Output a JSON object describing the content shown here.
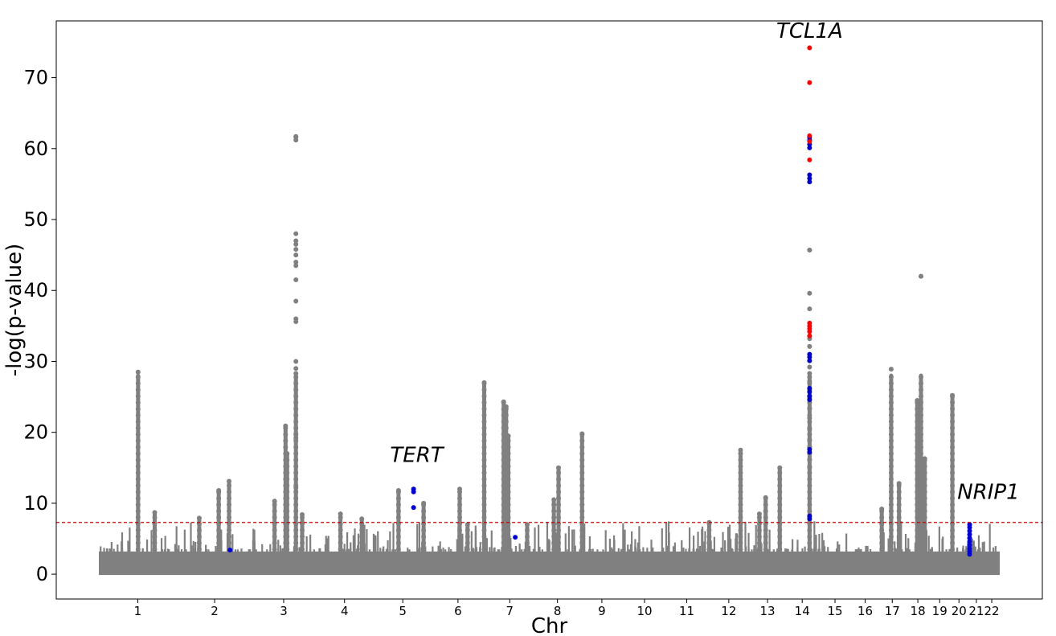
{
  "chart_data": {
    "type": "scatter",
    "title": "",
    "xlabel": "Chr",
    "ylabel": "-log(p-value)",
    "ylim": [
      -3.5,
      78
    ],
    "yticks": [
      0,
      10,
      20,
      30,
      40,
      50,
      60,
      70
    ],
    "chromosomes": [
      {
        "label": "1",
        "start": 0,
        "end": 248
      },
      {
        "label": "2",
        "start": 248,
        "end": 490
      },
      {
        "label": "3",
        "start": 490,
        "end": 688
      },
      {
        "label": "4",
        "start": 688,
        "end": 878
      },
      {
        "label": "5",
        "start": 878,
        "end": 1059
      },
      {
        "label": "6",
        "start": 1059,
        "end": 1230
      },
      {
        "label": "7",
        "start": 1230,
        "end": 1389
      },
      {
        "label": "8",
        "start": 1389,
        "end": 1534
      },
      {
        "label": "9",
        "start": 1534,
        "end": 1672
      },
      {
        "label": "10",
        "start": 1672,
        "end": 1806
      },
      {
        "label": "11",
        "start": 1806,
        "end": 1941
      },
      {
        "label": "12",
        "start": 1941,
        "end": 2074
      },
      {
        "label": "13",
        "start": 2074,
        "end": 2188
      },
      {
        "label": "14",
        "start": 2188,
        "end": 2295
      },
      {
        "label": "15",
        "start": 2295,
        "end": 2397
      },
      {
        "label": "16",
        "start": 2397,
        "end": 2487
      },
      {
        "label": "17",
        "start": 2487,
        "end": 2570
      },
      {
        "label": "18",
        "start": 2570,
        "end": 2650
      },
      {
        "label": "19",
        "start": 2650,
        "end": 2709
      },
      {
        "label": "20",
        "start": 2709,
        "end": 2773
      },
      {
        "label": "21",
        "start": 2773,
        "end": 2820
      },
      {
        "label": "22",
        "start": 2820,
        "end": 2871
      }
    ],
    "significance_threshold": 7.3,
    "colors": {
      "background_points": "#808080",
      "highlight_red": "#ff0000",
      "highlight_blue": "#0000cc",
      "threshold_line": "#cc0000"
    },
    "peaks": [
      {
        "pos": 125,
        "max": 28.5
      },
      {
        "pos": 178,
        "max": 8.7
      },
      {
        "pos": 320,
        "max": 7.9
      },
      {
        "pos": 382,
        "max": 11.8
      },
      {
        "pos": 415,
        "max": 13.1
      },
      {
        "pos": 560,
        "max": 10.3
      },
      {
        "pos": 595,
        "max": 20.9
      },
      {
        "pos": 600,
        "max": 17.0
      },
      {
        "pos": 628,
        "max": 61.7
      },
      {
        "pos": 648,
        "max": 8.4
      },
      {
        "pos": 770,
        "max": 8.5
      },
      {
        "pos": 838,
        "max": 7.8
      },
      {
        "pos": 955,
        "max": 11.8
      },
      {
        "pos": 1035,
        "max": 10.0
      },
      {
        "pos": 1150,
        "max": 12.0
      },
      {
        "pos": 1175,
        "max": 7.0
      },
      {
        "pos": 1228,
        "max": 27.0
      },
      {
        "pos": 1290,
        "max": 24.3
      },
      {
        "pos": 1298,
        "max": 23.6
      },
      {
        "pos": 1305,
        "max": 19.5
      },
      {
        "pos": 1365,
        "max": 7.0
      },
      {
        "pos": 1450,
        "max": 10.5
      },
      {
        "pos": 1465,
        "max": 15.0
      },
      {
        "pos": 1540,
        "max": 19.8
      },
      {
        "pos": 1945,
        "max": 7.3
      },
      {
        "pos": 2045,
        "max": 17.5
      },
      {
        "pos": 2105,
        "max": 8.5
      },
      {
        "pos": 2125,
        "max": 10.8
      },
      {
        "pos": 2170,
        "max": 15.0
      },
      {
        "pos": 2265,
        "max": 45.7
      },
      {
        "pos": 2495,
        "max": 9.2
      },
      {
        "pos": 2525,
        "max": 28.9
      },
      {
        "pos": 2550,
        "max": 12.8
      },
      {
        "pos": 2608,
        "max": 24.5
      },
      {
        "pos": 2620,
        "max": 42.0
      },
      {
        "pos": 2632,
        "max": 16.3
      },
      {
        "pos": 2720,
        "max": 25.2
      }
    ],
    "tall_points_gray": [
      {
        "pos": 628,
        "y": [
          61.6,
          61.2,
          48.0,
          47.0,
          46.5,
          45.8,
          45.0,
          44.0,
          43.5,
          41.5,
          38.5,
          36.0,
          35.6,
          30.0,
          29.0,
          28.3,
          19.8,
          19.2,
          12.2
        ]
      },
      {
        "pos": 2265,
        "y": [
          45.7,
          39.6,
          37.4,
          33.2,
          32.1,
          29.2,
          28.3,
          27.2,
          26.0,
          24.8,
          23.4,
          22.0,
          20.4,
          19.0,
          18.0,
          16.2,
          15.0
        ]
      },
      {
        "pos": 2620,
        "y": [
          42.0
        ]
      }
    ],
    "highlight_red": [
      {
        "pos": 2265,
        "y": [
          74.2,
          69.3,
          61.8,
          61.0,
          58.4,
          35.4,
          35.0,
          34.6,
          34.2,
          33.6
        ]
      }
    ],
    "highlight_blue": [
      {
        "pos": 2265,
        "y": [
          61.6,
          61.2,
          60.6,
          60.1,
          56.3,
          55.8,
          55.3,
          31.0,
          30.6,
          30.1,
          26.2,
          25.7,
          25.1,
          24.6,
          17.6,
          17.2,
          8.2,
          7.8
        ]
      },
      {
        "pos": 1003,
        "y": [
          12.0,
          11.6,
          9.4
        ]
      },
      {
        "pos": 418,
        "y": [
          3.4
        ]
      },
      {
        "pos": 1327,
        "y": [
          5.2
        ]
      },
      {
        "pos": 2775,
        "y": [
          7.0,
          6.6,
          6.1,
          5.6,
          5.1,
          4.6,
          4.1,
          3.6,
          3.2,
          2.8
        ]
      }
    ],
    "annotations": [
      {
        "text": "TCL1A",
        "pos": 2265,
        "y": 75.6
      },
      {
        "text": "TERT",
        "pos": 1013,
        "y": 15.8
      },
      {
        "text": "NRIP1",
        "pos": 2835,
        "y": 10.6
      }
    ]
  }
}
